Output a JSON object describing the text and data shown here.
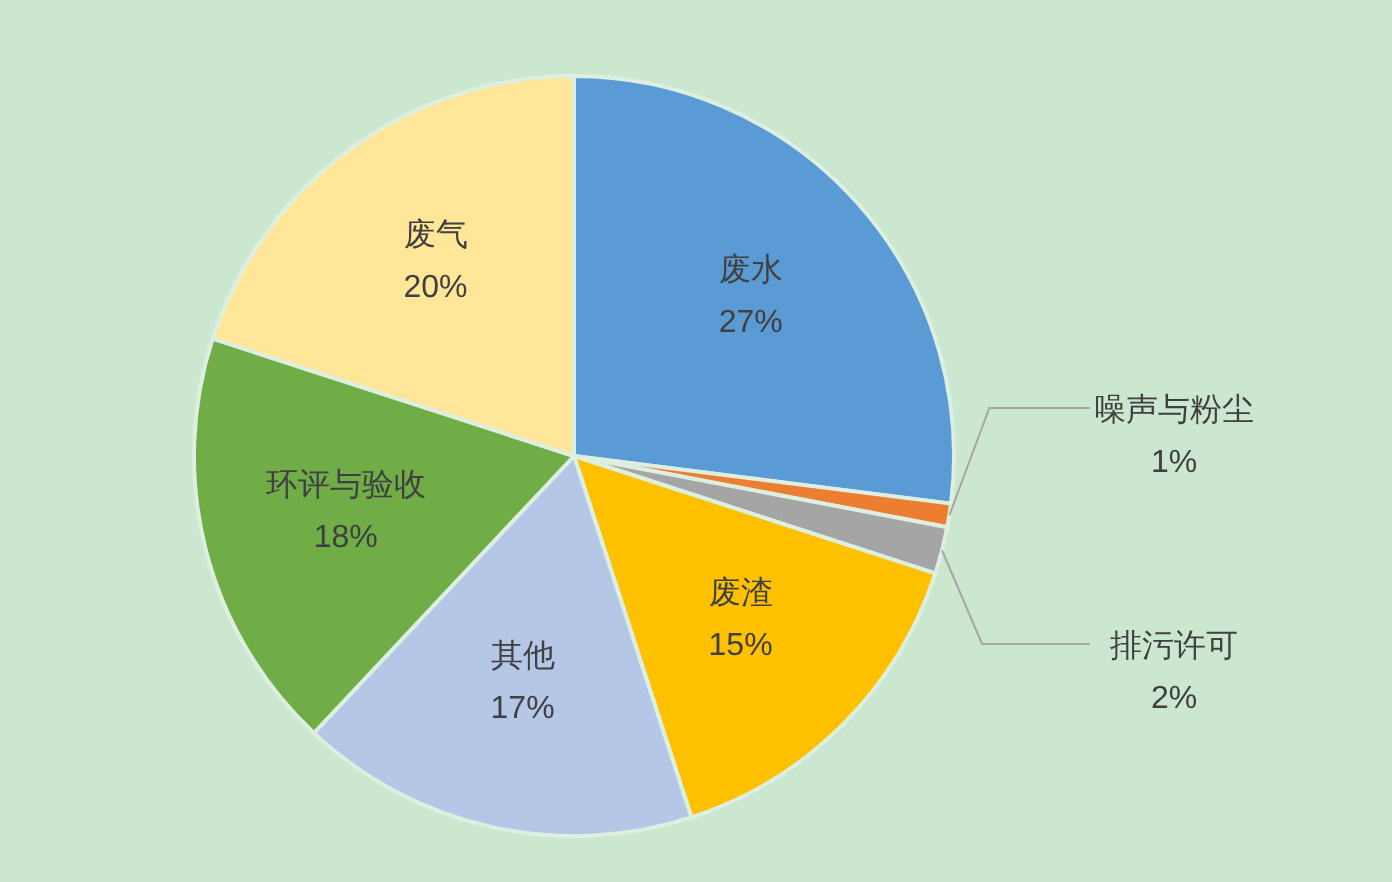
{
  "chart_data": {
    "type": "pie",
    "categories": [
      "废水",
      "噪声与粉尘",
      "排污许可",
      "废渣",
      "其他",
      "环评与验收",
      "废气"
    ],
    "values": [
      27,
      1,
      2,
      15,
      17,
      18,
      20
    ],
    "colors": [
      "#5b9bd5",
      "#ed7d31",
      "#a5a5a5",
      "#ffc000",
      "#b4c7e7",
      "#70ad47",
      "#ffe699"
    ],
    "value_labels": [
      "27%",
      "1%",
      "2%",
      "15%",
      "17%",
      "18%",
      "20%"
    ]
  }
}
